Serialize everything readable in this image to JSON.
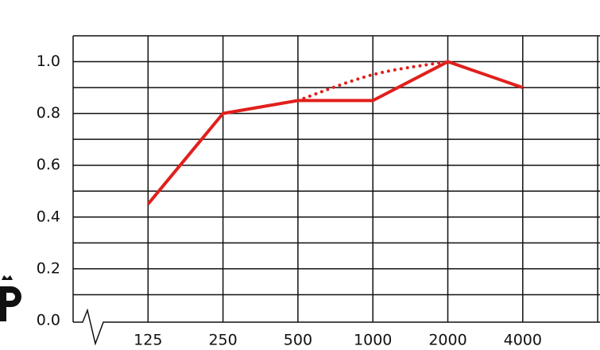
{
  "chart_data": {
    "type": "line",
    "categories": [
      "125",
      "250",
      "500",
      "1000",
      "2000",
      "4000"
    ],
    "series": [
      {
        "color": "#e0201c",
        "style": "solid",
        "values": [
          0.45,
          0.8,
          0.85,
          0.85,
          1.0,
          0.9
        ]
      },
      {
        "color": "#e0201c",
        "style": "dotted",
        "values": [
          null,
          null,
          0.85,
          0.95,
          1.0,
          null
        ]
      }
    ],
    "ylim": [
      0,
      1.1
    ],
    "yticks": [
      {
        "value": 0,
        "label": "0.0"
      },
      {
        "value": 0.2,
        "label": "0.2"
      },
      {
        "value": 0.4,
        "label": "0.4"
      },
      {
        "value": 0.6,
        "label": "0.6"
      },
      {
        "value": 0.8,
        "label": "0.8"
      },
      {
        "value": 1,
        "label": "1.0"
      }
    ],
    "minor_yticks": [
      0.1,
      0.3,
      0.5,
      0.7,
      0.9,
      1.1
    ],
    "grid": true
  }
}
